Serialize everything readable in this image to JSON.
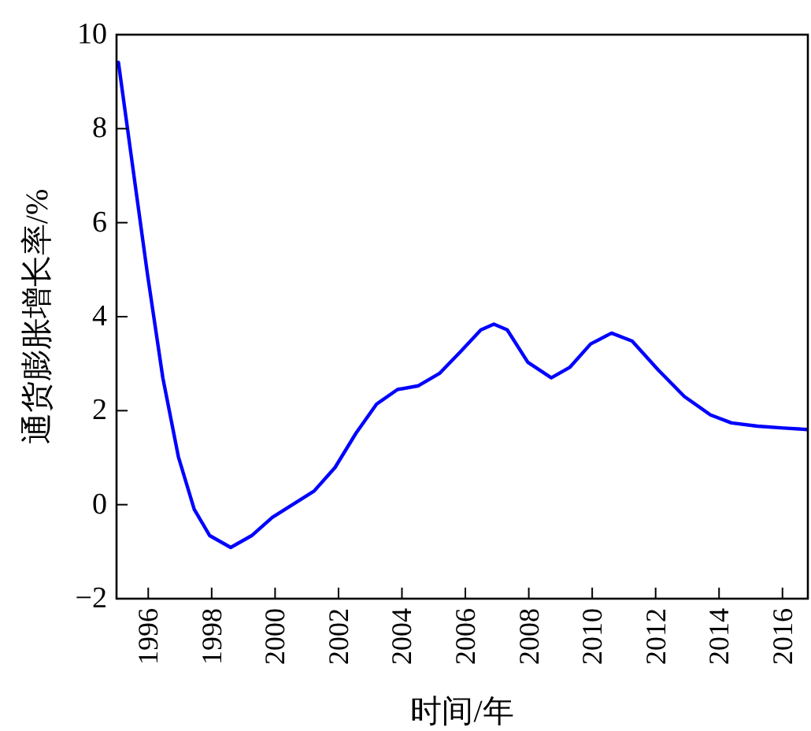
{
  "chart_data": {
    "type": "line",
    "xlabel": "时间/年",
    "ylabel": "通货膨胀增长率/%",
    "xlim": [
      1995,
      2016.8
    ],
    "ylim": [
      -2,
      10
    ],
    "xticks": [
      1996,
      1998,
      2000,
      2002,
      2004,
      2006,
      2008,
      2010,
      2012,
      2014,
      2016
    ],
    "yticks": [
      -2,
      0,
      2,
      4,
      6,
      8,
      10
    ],
    "grid": false,
    "marker": "none",
    "line_style": "solid",
    "series": [
      {
        "color": "#0000ff",
        "x": [
          1995.06,
          1995.47,
          1995.97,
          1996.46,
          1996.95,
          1997.45,
          1997.94,
          1998.6,
          1999.26,
          1999.91,
          2000.57,
          2001.23,
          2001.89,
          2002.55,
          2003.2,
          2003.86,
          2004.52,
          2005.18,
          2005.84,
          2006.49,
          2006.9,
          2007.32,
          2007.97,
          2008.71,
          2009.29,
          2009.95,
          2010.61,
          2011.26,
          2012.09,
          2012.91,
          2013.73,
          2014.39,
          2015.21,
          2016.03,
          2016.77
        ],
        "values": [
          9.41,
          7.39,
          4.93,
          2.7,
          1.02,
          -0.1,
          -0.66,
          -0.91,
          -0.66,
          -0.27,
          0.01,
          0.29,
          0.79,
          1.52,
          2.14,
          2.45,
          2.53,
          2.79,
          3.25,
          3.72,
          3.84,
          3.72,
          3.03,
          2.7,
          2.92,
          3.42,
          3.65,
          3.48,
          2.86,
          2.3,
          1.91,
          1.74,
          1.67,
          1.63,
          1.6
        ]
      }
    ]
  }
}
